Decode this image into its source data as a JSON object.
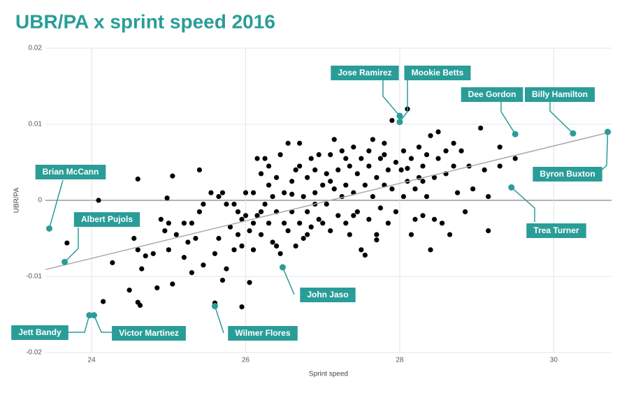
{
  "chart_data": {
    "type": "scatter",
    "title": "UBR/PA x sprint speed 2016",
    "x_label": "Sprint speed",
    "y_label": "UBR/PA",
    "xlim": [
      23.4,
      30.75
    ],
    "ylim": [
      -0.02,
      0.02
    ],
    "xticks": [
      24,
      26,
      28,
      30
    ],
    "yticks": [
      -0.02,
      -0.01,
      0,
      0.01,
      0.02
    ],
    "grid": true,
    "color": "#000000",
    "highlight_color": "#2a9d98",
    "trend_color": "#aaaaaa",
    "trendline": {
      "x": [
        23.4,
        30.75
      ],
      "y": [
        -0.0091,
        0.009
      ]
    },
    "points": [
      [
        24.09,
        0
      ],
      [
        23.68,
        -0.0056
      ],
      [
        24.15,
        -0.0133
      ],
      [
        24.27,
        -0.0082
      ],
      [
        24.49,
        -0.0118
      ],
      [
        24.6,
        -0.0134
      ],
      [
        24.63,
        -0.0138
      ],
      [
        24.6,
        0.0028
      ],
      [
        24.55,
        -0.005
      ],
      [
        24.6,
        -0.0065
      ],
      [
        24.7,
        -0.0073
      ],
      [
        24.65,
        -0.009
      ],
      [
        24.8,
        -0.007
      ],
      [
        24.85,
        -0.0115
      ],
      [
        24.9,
        -0.0025
      ],
      [
        24.95,
        -0.004
      ],
      [
        24.98,
        0.0003
      ],
      [
        25.0,
        -0.0065
      ],
      [
        25.05,
        -0.011
      ],
      [
        25.05,
        0.0032
      ],
      [
        25.1,
        -0.0045
      ],
      [
        25.0,
        -0.003
      ],
      [
        25.2,
        -0.0075
      ],
      [
        25.25,
        -0.0055
      ],
      [
        25.3,
        -0.0095
      ],
      [
        25.35,
        -0.005
      ],
      [
        25.4,
        0.004
      ],
      [
        25.4,
        -0.0015
      ],
      [
        25.45,
        -0.0085
      ],
      [
        25.45,
        -0.0005
      ],
      [
        25.3,
        -0.003
      ],
      [
        25.2,
        -0.003
      ],
      [
        25.55,
        0.001
      ],
      [
        25.6,
        -0.0135
      ],
      [
        25.6,
        -0.007
      ],
      [
        25.65,
        -0.005
      ],
      [
        25.7,
        -0.0105
      ],
      [
        25.75,
        -0.009
      ],
      [
        25.75,
        -0.0005
      ],
      [
        25.8,
        -0.0035
      ],
      [
        25.85,
        -0.0065
      ],
      [
        25.9,
        -0.0015
      ],
      [
        25.9,
        -0.0045
      ],
      [
        25.95,
        -0.014
      ],
      [
        25.95,
        -0.006
      ],
      [
        26.0,
        -0.002
      ],
      [
        26.0,
        0.001
      ],
      [
        25.95,
        -0.0025
      ],
      [
        25.85,
        -0.0005
      ],
      [
        25.7,
        0.001
      ],
      [
        25.65,
        0.0005
      ],
      [
        26.05,
        -0.0108
      ],
      [
        26.05,
        -0.004
      ],
      [
        26.1,
        0.001
      ],
      [
        26.1,
        -0.0065
      ],
      [
        26.15,
        -0.002
      ],
      [
        26.15,
        0.0055
      ],
      [
        26.2,
        -0.0045
      ],
      [
        26.2,
        0.0035
      ],
      [
        26.25,
        -0.0005
      ],
      [
        26.25,
        0.0055
      ],
      [
        26.3,
        -0.003
      ],
      [
        26.3,
        0.002
      ],
      [
        26.35,
        -0.0055
      ],
      [
        26.35,
        0.0005
      ],
      [
        26.4,
        0.003
      ],
      [
        26.4,
        -0.0015
      ],
      [
        26.45,
        0.006
      ],
      [
        26.45,
        -0.007
      ],
      [
        26.5,
        -0.003
      ],
      [
        26.5,
        0.001
      ],
      [
        26.3,
        0.0045
      ],
      [
        26.2,
        -0.0015
      ],
      [
        26.1,
        -0.003
      ],
      [
        26.4,
        -0.006
      ],
      [
        26.55,
        0.0075
      ],
      [
        26.55,
        -0.004
      ],
      [
        26.6,
        0.0025
      ],
      [
        26.6,
        -0.0015
      ],
      [
        26.65,
        -0.006
      ],
      [
        26.65,
        0.004
      ],
      [
        26.7,
        0.0075
      ],
      [
        26.7,
        -0.003
      ],
      [
        26.75,
        0.0005
      ],
      [
        26.75,
        -0.005
      ],
      [
        26.8,
        0.003
      ],
      [
        26.8,
        -0.0015
      ],
      [
        26.85,
        0.0055
      ],
      [
        26.85,
        -0.0035
      ],
      [
        26.9,
        0.001
      ],
      [
        26.9,
        0.004
      ],
      [
        26.95,
        -0.0025
      ],
      [
        26.95,
        0.006
      ],
      [
        27.0,
        0.002
      ],
      [
        27.0,
        -0.003
      ],
      [
        26.6,
        0.0008
      ],
      [
        26.7,
        0.0045
      ],
      [
        26.8,
        -0.0045
      ],
      [
        26.9,
        -0.0005
      ],
      [
        27.05,
        0.0035
      ],
      [
        27.05,
        -0.0005
      ],
      [
        27.1,
        0.006
      ],
      [
        27.1,
        -0.004
      ],
      [
        27.15,
        0.0015
      ],
      [
        27.15,
        0.008
      ],
      [
        27.2,
        -0.002
      ],
      [
        27.2,
        0.004
      ],
      [
        27.25,
        0.0005
      ],
      [
        27.25,
        0.0065
      ],
      [
        27.3,
        -0.003
      ],
      [
        27.3,
        0.002
      ],
      [
        27.35,
        0.0045
      ],
      [
        27.35,
        -0.0045
      ],
      [
        27.4,
        0.001
      ],
      [
        27.4,
        0.007
      ],
      [
        27.45,
        -0.0015
      ],
      [
        27.45,
        0.0035
      ],
      [
        27.5,
        0.0055
      ],
      [
        27.5,
        -0.0065
      ],
      [
        27.55,
        -0.0072
      ],
      [
        27.1,
        0.0025
      ],
      [
        27.3,
        0.0055
      ],
      [
        27.4,
        -0.002
      ],
      [
        27.55,
        0.002
      ],
      [
        27.6,
        0.0045
      ],
      [
        27.6,
        -0.0025
      ],
      [
        27.65,
        0.008
      ],
      [
        27.65,
        0.0005
      ],
      [
        27.7,
        0.003
      ],
      [
        27.7,
        -0.0045
      ],
      [
        27.75,
        0.0055
      ],
      [
        27.75,
        -0.001
      ],
      [
        27.8,
        0.002
      ],
      [
        27.8,
        0.0075
      ],
      [
        27.85,
        0.004
      ],
      [
        27.85,
        -0.003
      ],
      [
        27.9,
        0.0105
      ],
      [
        27.9,
        0.0015
      ],
      [
        27.95,
        0.005
      ],
      [
        27.95,
        -0.0015
      ],
      [
        27.7,
        -0.0052
      ],
      [
        27.8,
        0.006
      ],
      [
        27.6,
        0.0065
      ],
      [
        28.02,
        0.004
      ],
      [
        28.05,
        0.0005
      ],
      [
        28.05,
        0.0065
      ],
      [
        28.1,
        0.012
      ],
      [
        28.1,
        0.0025
      ],
      [
        28.15,
        -0.0045
      ],
      [
        28.15,
        0.0055
      ],
      [
        28.2,
        0.0015
      ],
      [
        28.2,
        -0.0025
      ],
      [
        28.25,
        0.007
      ],
      [
        28.25,
        0.003
      ],
      [
        28.3,
        0.0045
      ],
      [
        28.3,
        -0.002
      ],
      [
        28.35,
        0.006
      ],
      [
        28.35,
        0.0005
      ],
      [
        28.4,
        -0.0065
      ],
      [
        28.4,
        0.0085
      ],
      [
        28.45,
        0.003
      ],
      [
        28.45,
        -0.0025
      ],
      [
        28.5,
        0.0055
      ],
      [
        28.5,
        0.009
      ],
      [
        28.1,
        0.0042
      ],
      [
        28.3,
        0.0025
      ],
      [
        28.55,
        -0.003
      ],
      [
        28.6,
        0.0035
      ],
      [
        28.6,
        0.0065
      ],
      [
        28.65,
        -0.0045
      ],
      [
        28.7,
        0.0045
      ],
      [
        28.7,
        0.0075
      ],
      [
        28.75,
        0.001
      ],
      [
        28.8,
        0.0065
      ],
      [
        28.85,
        -0.0015
      ],
      [
        28.9,
        0.0045
      ],
      [
        28.95,
        0.0015
      ],
      [
        29.05,
        0.0095
      ],
      [
        29.1,
        0.004
      ],
      [
        29.15,
        0.0005
      ],
      [
        29.15,
        -0.004
      ],
      [
        29.3,
        0.007
      ],
      [
        29.3,
        0.0045
      ],
      [
        29.5,
        0.0055
      ]
    ],
    "highlights": [
      {
        "label": "Brian McCann",
        "x": 23.45,
        "y": -0.0037
      },
      {
        "label": "Albert Pujols",
        "x": 23.65,
        "y": -0.0081
      },
      {
        "label": "Jett Bandy",
        "x": 23.97,
        "y": -0.0151
      },
      {
        "label": "Victor Martinez",
        "x": 24.03,
        "y": -0.0151
      },
      {
        "label": "Wilmer Flores",
        "x": 25.6,
        "y": -0.0139
      },
      {
        "label": "John Jaso",
        "x": 26.48,
        "y": -0.0088
      },
      {
        "label": "Jose Ramirez",
        "x": 28.0,
        "y": 0.0111
      },
      {
        "label": "Mookie Betts",
        "x": 28.0,
        "y": 0.0103
      },
      {
        "label": "Dee Gordon",
        "x": 29.5,
        "y": 0.0087
      },
      {
        "label": "Billy Hamilton",
        "x": 30.25,
        "y": 0.0088
      },
      {
        "label": "Byron Buxton",
        "x": 30.7,
        "y": 0.009
      },
      {
        "label": "Trea Turner",
        "x": 29.45,
        "y": 0.0017
      }
    ]
  }
}
